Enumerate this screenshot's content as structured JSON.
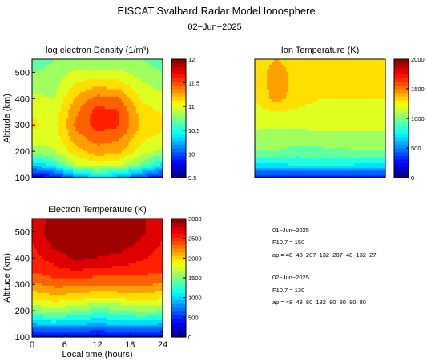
{
  "figure": {
    "title": "EISCAT Svalbard Radar Model Ionosphere",
    "date": "02−Jun−2025"
  },
  "info_block": {
    "lines": [
      "01−Jun−2025",
      "F10.7 = 150",
      "ap = 48  48  207  132  207  48  132  27",
      "02−Jun−2025",
      "F10.7 = 130",
      "ap = 48  48  80  132  80  80  80  80"
    ]
  },
  "chart_data": [
    {
      "type": "heatmap",
      "title": "log electron Density (1/m³)",
      "xlabel": "",
      "ylabel": "Altitude (km)",
      "xlim": [
        0,
        24
      ],
      "ylim": [
        100,
        550
      ],
      "yticks": [
        100,
        200,
        300,
        400,
        500
      ],
      "xticks": [],
      "colorbar": {
        "min": 9.5,
        "max": 12,
        "ticks": [
          9.5,
          10,
          10.5,
          11,
          11.5,
          12
        ],
        "tick_labels": [
          "9.5",
          "10",
          "10.5",
          "11",
          "11.5",
          "12"
        ],
        "colormap": "jet"
      },
      "x": [
        0,
        4,
        8,
        12,
        16,
        20,
        24
      ],
      "y": [
        100,
        150,
        200,
        250,
        300,
        350,
        400,
        450,
        500,
        550
      ],
      "z": [
        [
          9.7,
          9.8,
          10.1,
          10.3,
          10.2,
          9.95,
          9.8
        ],
        [
          10.3,
          10.5,
          10.9,
          11.0,
          10.95,
          10.7,
          10.4
        ],
        [
          10.8,
          10.9,
          11.15,
          11.3,
          11.25,
          11.0,
          10.85
        ],
        [
          11.0,
          10.95,
          11.3,
          11.45,
          11.4,
          11.1,
          11.0
        ],
        [
          11.1,
          11.0,
          11.4,
          11.6,
          11.55,
          11.2,
          11.1
        ],
        [
          11.05,
          10.95,
          11.35,
          11.6,
          11.55,
          11.15,
          11.05
        ],
        [
          10.95,
          10.9,
          11.25,
          11.45,
          11.4,
          11.05,
          10.95
        ],
        [
          10.85,
          10.85,
          11.1,
          11.2,
          11.15,
          10.95,
          10.85
        ],
        [
          10.75,
          10.8,
          10.95,
          10.95,
          10.95,
          10.85,
          10.75
        ],
        [
          10.65,
          10.75,
          10.8,
          10.75,
          10.8,
          10.75,
          10.65
        ]
      ]
    },
    {
      "type": "heatmap",
      "title": "Ion Temperature (K)",
      "xlabel": "",
      "ylabel": "",
      "xlim": [
        0,
        24
      ],
      "ylim": [
        100,
        550
      ],
      "yticks": [],
      "xticks": [],
      "colorbar": {
        "min": 0,
        "max": 2000,
        "ticks": [
          0,
          500,
          1000,
          1500,
          2000
        ],
        "tick_labels": [
          "0",
          "500",
          "1000",
          "1500",
          "2000"
        ],
        "colormap": "jet"
      },
      "x": [
        0,
        4,
        8,
        12,
        16,
        20,
        24
      ],
      "y": [
        100,
        150,
        200,
        250,
        300,
        350,
        400,
        450,
        500,
        550
      ],
      "z": [
        [
          250,
          250,
          250,
          250,
          250,
          250,
          250
        ],
        [
          700,
          720,
          760,
          780,
          760,
          730,
          700
        ],
        [
          1000,
          1000,
          950,
          960,
          980,
          1000,
          1000
        ],
        [
          1080,
          1060,
          1050,
          1070,
          1080,
          1080,
          1080
        ],
        [
          1150,
          1140,
          1160,
          1160,
          1150,
          1150,
          1150
        ],
        [
          1200,
          1250,
          1220,
          1200,
          1200,
          1200,
          1200
        ],
        [
          1250,
          1420,
          1300,
          1250,
          1250,
          1250,
          1250
        ],
        [
          1280,
          1450,
          1320,
          1270,
          1270,
          1270,
          1280
        ],
        [
          1300,
          1430,
          1320,
          1290,
          1290,
          1290,
          1300
        ],
        [
          1310,
          1380,
          1320,
          1300,
          1300,
          1300,
          1310
        ]
      ]
    },
    {
      "type": "heatmap",
      "title": "Electron Temperature (K)",
      "xlabel": "Local time (hours)",
      "ylabel": "Altitude (km)",
      "xlim": [
        0,
        24
      ],
      "ylim": [
        100,
        550
      ],
      "xticks": [
        0,
        6,
        12,
        18,
        24
      ],
      "yticks": [
        100,
        200,
        300,
        400,
        500
      ],
      "colorbar": {
        "min": 0,
        "max": 3000,
        "ticks": [
          0,
          500,
          1000,
          1500,
          2000,
          2500,
          3000
        ],
        "tick_labels": [
          "0",
          "500",
          "1000",
          "1500",
          "2000",
          "2500",
          "3000"
        ],
        "colormap": "jet"
      },
      "x": [
        0,
        4,
        8,
        12,
        16,
        20,
        24
      ],
      "y": [
        100,
        150,
        200,
        250,
        300,
        350,
        400,
        450,
        500,
        550
      ],
      "z": [
        [
          250,
          250,
          250,
          250,
          250,
          250,
          250
        ],
        [
          900,
          1000,
          950,
          900,
          950,
          1000,
          900
        ],
        [
          1500,
          1600,
          1500,
          1400,
          1450,
          1550,
          1500
        ],
        [
          1900,
          2000,
          1950,
          1850,
          1900,
          1950,
          1900
        ],
        [
          2200,
          2300,
          2300,
          2250,
          2250,
          2300,
          2200
        ],
        [
          2450,
          2550,
          2600,
          2550,
          2550,
          2500,
          2450
        ],
        [
          2550,
          2700,
          2850,
          2800,
          2750,
          2650,
          2550
        ],
        [
          2600,
          2850,
          2950,
          2950,
          2900,
          2750,
          2600
        ],
        [
          2650,
          2950,
          3000,
          3100,
          3100,
          2850,
          2650
        ],
        [
          2650,
          2900,
          2950,
          3150,
          3150,
          2850,
          2650
        ]
      ]
    }
  ]
}
